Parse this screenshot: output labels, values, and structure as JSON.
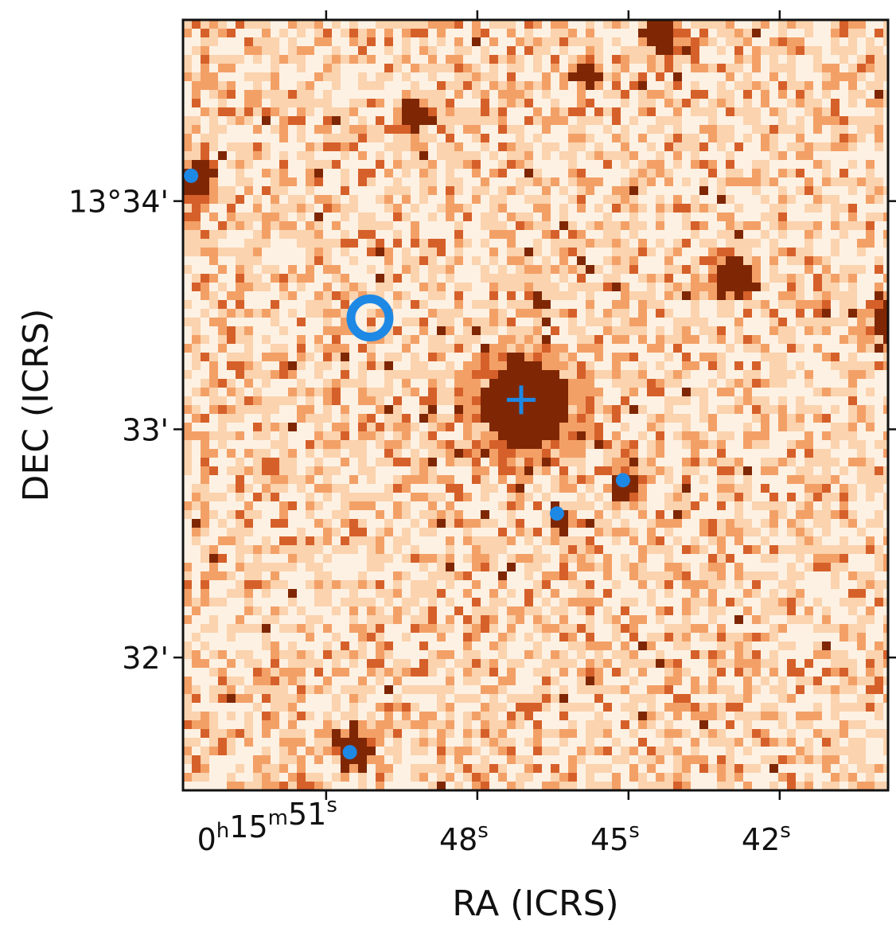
{
  "chart_data": {
    "type": "image",
    "x_label": "RA (ICRS)",
    "y_label": "DEC (ICRS)",
    "xlim": [
      53.84,
      39.85
    ],
    "ylim": [
      31.418,
      34.794
    ],
    "xticks": [
      {
        "value": 51,
        "label": "0h15m51s"
      },
      {
        "value": 48,
        "label": "48s"
      },
      {
        "value": 45,
        "label": "45s"
      },
      {
        "value": 42,
        "label": "42s"
      }
    ],
    "yticks": [
      {
        "value": 34,
        "label": "13°34'"
      },
      {
        "value": 33,
        "label": "33'"
      },
      {
        "value": 32,
        "label": "32'"
      }
    ],
    "marker_color": "#1e88e5",
    "target": {
      "x": 47.13,
      "y": 33.129
    },
    "ring": {
      "x": 50.13,
      "y": 33.488
    },
    "sources": {
      "x": [
        53.68,
        45.11,
        46.42,
        50.53
      ],
      "y": [
        34.111,
        32.777,
        32.631,
        31.585
      ]
    }
  }
}
